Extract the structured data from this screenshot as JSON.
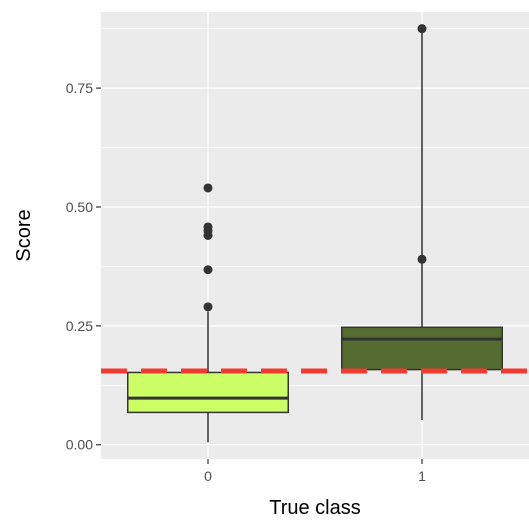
{
  "chart_data": {
    "type": "boxplot",
    "xlabel": "True class",
    "ylabel": "Score",
    "categories": [
      "0",
      "1"
    ],
    "ylim": [
      -0.03,
      0.91
    ],
    "y_ticks": [
      0.0,
      0.25,
      0.5,
      0.75
    ],
    "y_tick_labels": [
      "0.00",
      "0.25",
      "0.50",
      "0.75"
    ],
    "grid": true,
    "boxes": [
      {
        "category": "0",
        "q1": 0.068,
        "median": 0.098,
        "q3": 0.152,
        "whisker_low": 0.005,
        "whisker_high": 0.28,
        "outliers": [
          0.29,
          0.368,
          0.44,
          0.45,
          0.458,
          0.54
        ],
        "fill": "#CCFF66"
      },
      {
        "category": "1",
        "q1": 0.158,
        "median": 0.222,
        "q3": 0.247,
        "whisker_low": 0.052,
        "whisker_high": 0.875,
        "outliers": [
          0.39,
          0.875
        ],
        "fill": "#556B2F"
      }
    ],
    "threshold": {
      "value": 0.155,
      "color": "#F23B30",
      "style": "dashed"
    },
    "colors": {
      "panel": "#EBEBEB",
      "grid": "#FFFFFF",
      "box_outline": "#333333",
      "outlier": "#333333"
    }
  }
}
